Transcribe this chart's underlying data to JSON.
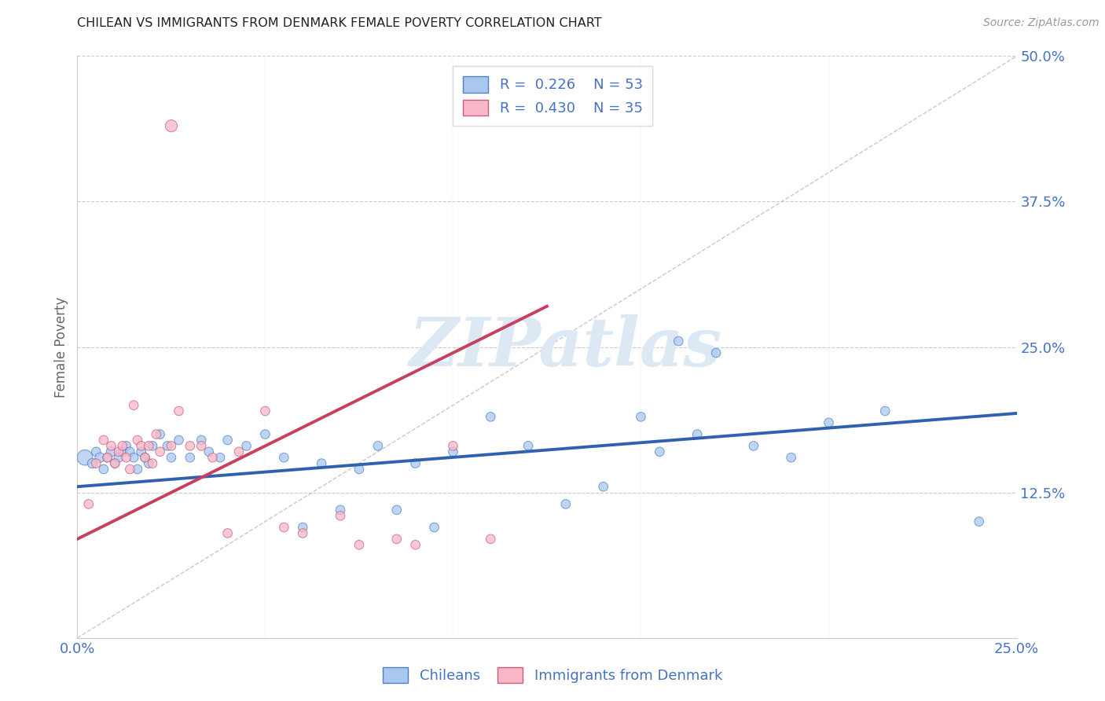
{
  "title": "CHILEAN VS IMMIGRANTS FROM DENMARK FEMALE POVERTY CORRELATION CHART",
  "source": "Source: ZipAtlas.com",
  "ylabel": "Female Poverty",
  "xmin": 0.0,
  "xmax": 0.25,
  "ymin": 0.0,
  "ymax": 0.5,
  "ytick_labels": [
    "12.5%",
    "25.0%",
    "37.5%",
    "50.0%"
  ],
  "ytick_values": [
    0.125,
    0.25,
    0.375,
    0.5
  ],
  "xtick_labels": [
    "0.0%",
    "25.0%"
  ],
  "xtick_values": [
    0.0,
    0.25
  ],
  "legend_R1": "R = ",
  "legend_R1val": "0.226",
  "legend_N1": "N = ",
  "legend_N1val": "53",
  "legend_R2": "R = ",
  "legend_R2val": "0.430",
  "legend_N2": "N = ",
  "legend_N2val": "35",
  "color_chilean_fill": "#a8c8f0",
  "color_chilean_edge": "#5080c0",
  "color_denmark_fill": "#f8b8c8",
  "color_denmark_edge": "#d05878",
  "color_trend_chilean": "#3060b0",
  "color_trend_denmark": "#c84060",
  "color_ref_line": "#bbbbbb",
  "color_grid": "#cccccc",
  "color_title": "#222222",
  "color_axis_ticks": "#4472c4",
  "color_source": "#999999",
  "color_ylabel": "#666666",
  "background_color": "#ffffff",
  "watermark_color": "#dde8f5",
  "trend_chilean_x0": 0.0,
  "trend_chilean_x1": 0.25,
  "trend_chilean_y0": 0.13,
  "trend_chilean_y1": 0.193,
  "trend_denmark_x0": 0.0,
  "trend_denmark_x1": 0.125,
  "trend_denmark_y0": 0.085,
  "trend_denmark_y1": 0.285,
  "chilean_x": [
    0.002,
    0.004,
    0.005,
    0.006,
    0.007,
    0.008,
    0.009,
    0.01,
    0.011,
    0.012,
    0.013,
    0.014,
    0.015,
    0.016,
    0.017,
    0.018,
    0.019,
    0.02,
    0.022,
    0.024,
    0.025,
    0.027,
    0.03,
    0.033,
    0.035,
    0.038,
    0.04,
    0.045,
    0.05,
    0.055,
    0.06,
    0.065,
    0.07,
    0.075,
    0.08,
    0.085,
    0.09,
    0.095,
    0.1,
    0.11,
    0.12,
    0.13,
    0.14,
    0.15,
    0.155,
    0.16,
    0.165,
    0.17,
    0.18,
    0.19,
    0.2,
    0.215,
    0.24
  ],
  "chilean_y": [
    0.155,
    0.15,
    0.16,
    0.155,
    0.145,
    0.155,
    0.16,
    0.15,
    0.155,
    0.16,
    0.165,
    0.16,
    0.155,
    0.145,
    0.16,
    0.155,
    0.15,
    0.165,
    0.175,
    0.165,
    0.155,
    0.17,
    0.155,
    0.17,
    0.16,
    0.155,
    0.17,
    0.165,
    0.175,
    0.155,
    0.095,
    0.15,
    0.11,
    0.145,
    0.165,
    0.11,
    0.15,
    0.095,
    0.16,
    0.19,
    0.165,
    0.115,
    0.13,
    0.19,
    0.16,
    0.255,
    0.175,
    0.245,
    0.165,
    0.155,
    0.185,
    0.195,
    0.1
  ],
  "chilean_sizes": [
    200,
    80,
    70,
    80,
    70,
    70,
    80,
    70,
    70,
    70,
    70,
    70,
    70,
    70,
    70,
    70,
    70,
    70,
    70,
    70,
    70,
    70,
    70,
    70,
    70,
    70,
    70,
    70,
    70,
    70,
    70,
    70,
    70,
    70,
    70,
    70,
    70,
    70,
    70,
    70,
    70,
    70,
    70,
    70,
    70,
    70,
    70,
    70,
    70,
    70,
    70,
    70,
    70
  ],
  "denmark_x": [
    0.003,
    0.005,
    0.007,
    0.008,
    0.009,
    0.01,
    0.011,
    0.012,
    0.013,
    0.014,
    0.015,
    0.016,
    0.017,
    0.018,
    0.019,
    0.02,
    0.021,
    0.022,
    0.025,
    0.027,
    0.03,
    0.033,
    0.036,
    0.04,
    0.043,
    0.05,
    0.055,
    0.06,
    0.07,
    0.075,
    0.085,
    0.09,
    0.1,
    0.11,
    0.025
  ],
  "denmark_y": [
    0.115,
    0.15,
    0.17,
    0.155,
    0.165,
    0.15,
    0.16,
    0.165,
    0.155,
    0.145,
    0.2,
    0.17,
    0.165,
    0.155,
    0.165,
    0.15,
    0.175,
    0.16,
    0.165,
    0.195,
    0.165,
    0.165,
    0.155,
    0.09,
    0.16,
    0.195,
    0.095,
    0.09,
    0.105,
    0.08,
    0.085,
    0.08,
    0.165,
    0.085,
    0.44
  ],
  "denmark_sizes": [
    70,
    70,
    70,
    70,
    70,
    70,
    70,
    70,
    70,
    70,
    70,
    70,
    70,
    70,
    70,
    70,
    70,
    70,
    70,
    70,
    70,
    70,
    70,
    70,
    70,
    70,
    70,
    70,
    70,
    70,
    70,
    70,
    70,
    70,
    120
  ]
}
